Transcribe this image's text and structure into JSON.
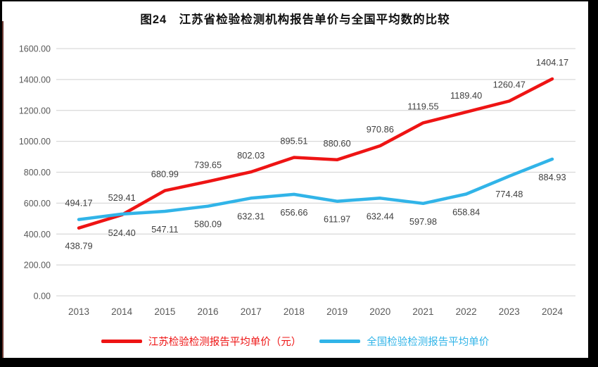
{
  "chart_data": {
    "type": "line",
    "title": "图24　江苏省检验检测机构报告单价与全国平均数的比较",
    "categories": [
      "2013",
      "2014",
      "2015",
      "2016",
      "2017",
      "2018",
      "2019",
      "2020",
      "2021",
      "2022",
      "2023",
      "2024"
    ],
    "series": [
      {
        "name": "江苏检验检测报告平均单价（元）",
        "color": "#ee1414",
        "values": [
          438.79,
          524.4,
          680.99,
          739.65,
          802.03,
          895.51,
          880.6,
          970.86,
          1119.55,
          1189.4,
          1260.47,
          1404.17
        ],
        "label_side": [
          "below",
          "below",
          "above",
          "above",
          "above",
          "above",
          "above",
          "above",
          "above",
          "above",
          "above",
          "above"
        ]
      },
      {
        "name": "全国检验检测报告平均单价",
        "color": "#31b4e8",
        "values": [
          494.17,
          529.41,
          547.11,
          580.09,
          632.31,
          656.66,
          611.97,
          632.44,
          597.98,
          658.84,
          774.48,
          884.93
        ],
        "label_side": [
          "above",
          "above",
          "below",
          "below",
          "below",
          "below",
          "below",
          "below",
          "below",
          "below",
          "below",
          "below"
        ]
      }
    ],
    "ylim": [
      0,
      1600
    ],
    "y_ticks": [
      "0.00",
      "200.00",
      "400.00",
      "600.00",
      "800.00",
      "1000.00",
      "1200.00",
      "1400.00",
      "1600.00"
    ],
    "grid": true,
    "legend_position": "bottom",
    "axis_color": "#595959",
    "grid_color": "#d9d9d9",
    "label_color": "#3f3f3f"
  }
}
